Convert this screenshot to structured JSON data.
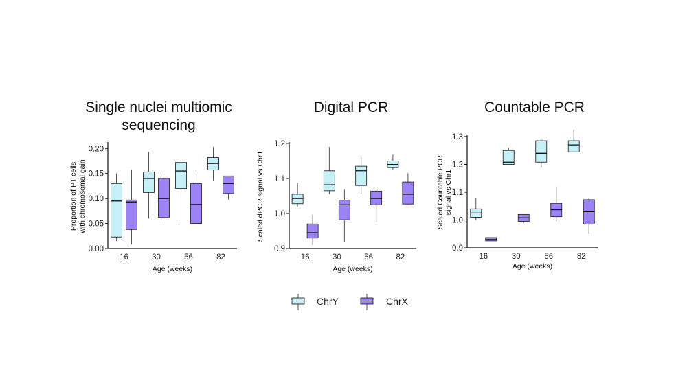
{
  "colors": {
    "chrY": "#c6f0f8",
    "chrX": "#9b82f5",
    "edge": "#2b2b2b",
    "axis": "#111111"
  },
  "legend": [
    {
      "name": "ChrY",
      "color": "#c6f0f8"
    },
    {
      "name": "ChrX",
      "color": "#9b82f5"
    }
  ],
  "chart_data": [
    {
      "type": "box",
      "title": [
        "Single nuclei multiomic",
        "sequencing"
      ],
      "xlabel": "Age (weeks)",
      "ylabel": [
        "Proportion of PT cells",
        "with chromosomal gain"
      ],
      "categories": [
        "16",
        "30",
        "56",
        "82"
      ],
      "ylim": [
        0.0,
        0.21
      ],
      "yticks": [
        0.0,
        0.05,
        0.1,
        0.15,
        0.2
      ],
      "ytick_labels": [
        "0.00",
        "0.05",
        "0.10",
        "0.15",
        "0.20"
      ],
      "series": [
        {
          "name": "ChrY",
          "boxes": [
            {
              "min": 0.015,
              "q1": 0.023,
              "median": 0.095,
              "q3": 0.13,
              "max": 0.15
            },
            {
              "min": 0.06,
              "q1": 0.112,
              "median": 0.14,
              "q3": 0.153,
              "max": 0.193
            },
            {
              "min": 0.05,
              "q1": 0.12,
              "median": 0.155,
              "q3": 0.172,
              "max": 0.177
            },
            {
              "min": 0.135,
              "q1": 0.157,
              "median": 0.17,
              "q3": 0.182,
              "max": 0.203
            }
          ]
        },
        {
          "name": "ChrX",
          "boxes": [
            {
              "min": 0.008,
              "q1": 0.038,
              "median": 0.093,
              "q3": 0.097,
              "max": 0.157
            },
            {
              "min": 0.05,
              "q1": 0.062,
              "median": 0.1,
              "q3": 0.14,
              "max": 0.15
            },
            {
              "min": 0.05,
              "q1": 0.05,
              "median": 0.088,
              "q3": 0.13,
              "max": 0.15
            },
            {
              "min": 0.098,
              "q1": 0.11,
              "median": 0.13,
              "q3": 0.145,
              "max": 0.145
            }
          ]
        }
      ]
    },
    {
      "type": "box",
      "title": [
        "Digital PCR"
      ],
      "xlabel": "Age (weeks)",
      "ylabel": [
        "Scaled dPCR signal vs Chr1"
      ],
      "categories": [
        "16",
        "30",
        "56",
        "82"
      ],
      "ylim": [
        0.9,
        1.2
      ],
      "yticks": [
        0.9,
        1.0,
        1.1,
        1.2
      ],
      "ytick_labels": [
        "0.9",
        "1.0",
        "1.1",
        "1.2"
      ],
      "series": [
        {
          "name": "ChrY",
          "boxes": [
            {
              "min": 1.02,
              "q1": 1.028,
              "median": 1.043,
              "q3": 1.055,
              "max": 1.088
            },
            {
              "min": 1.055,
              "q1": 1.065,
              "median": 1.082,
              "q3": 1.122,
              "max": 1.19
            },
            {
              "min": 1.055,
              "q1": 1.08,
              "median": 1.122,
              "q3": 1.135,
              "max": 1.16
            },
            {
              "min": 1.125,
              "q1": 1.131,
              "median": 1.14,
              "q3": 1.15,
              "max": 1.168
            }
          ]
        },
        {
          "name": "ChrX",
          "boxes": [
            {
              "min": 0.91,
              "q1": 0.93,
              "median": 0.945,
              "q3": 0.97,
              "max": 0.997
            },
            {
              "min": 0.92,
              "q1": 0.982,
              "median": 1.025,
              "q3": 1.038,
              "max": 1.068
            },
            {
              "min": 0.975,
              "q1": 1.025,
              "median": 1.043,
              "q3": 1.064,
              "max": 1.068
            },
            {
              "min": 1.025,
              "q1": 1.027,
              "median": 1.055,
              "q3": 1.09,
              "max": 1.115
            }
          ]
        }
      ]
    },
    {
      "type": "box",
      "title": [
        "Countable PCR"
      ],
      "xlabel": "Age (weeks)",
      "ylabel": [
        "Scaled Countable PCR",
        "signal vs Chr1"
      ],
      "categories": [
        "16",
        "30",
        "56",
        "82"
      ],
      "ylim": [
        0.9,
        1.3
      ],
      "yticks": [
        0.9,
        1.0,
        1.1,
        1.2,
        1.3
      ],
      "ytick_labels": [
        "0.9",
        "1.0",
        "1.1",
        "1.2",
        "1.3"
      ],
      "series": [
        {
          "name": "ChrY",
          "boxes": [
            {
              "min": 1.0,
              "q1": 1.01,
              "median": 1.025,
              "q3": 1.04,
              "max": 1.08
            },
            {
              "min": 1.2,
              "q1": 1.2,
              "median": 1.208,
              "q3": 1.25,
              "max": 1.26
            },
            {
              "min": 1.188,
              "q1": 1.208,
              "median": 1.24,
              "q3": 1.285,
              "max": 1.29
            },
            {
              "min": 1.245,
              "q1": 1.245,
              "median": 1.27,
              "q3": 1.285,
              "max": 1.325
            }
          ]
        },
        {
          "name": "ChrX",
          "boxes": [
            {
              "min": 0.925,
              "q1": 0.925,
              "median": 0.93,
              "q3": 0.937,
              "max": 0.937
            },
            {
              "min": 0.99,
              "q1": 0.995,
              "median": 1.008,
              "q3": 1.02,
              "max": 1.02
            },
            {
              "min": 0.995,
              "q1": 1.012,
              "median": 1.037,
              "q3": 1.06,
              "max": 1.12
            },
            {
              "min": 0.95,
              "q1": 0.985,
              "median": 1.03,
              "q3": 1.073,
              "max": 1.08
            }
          ]
        }
      ]
    }
  ]
}
